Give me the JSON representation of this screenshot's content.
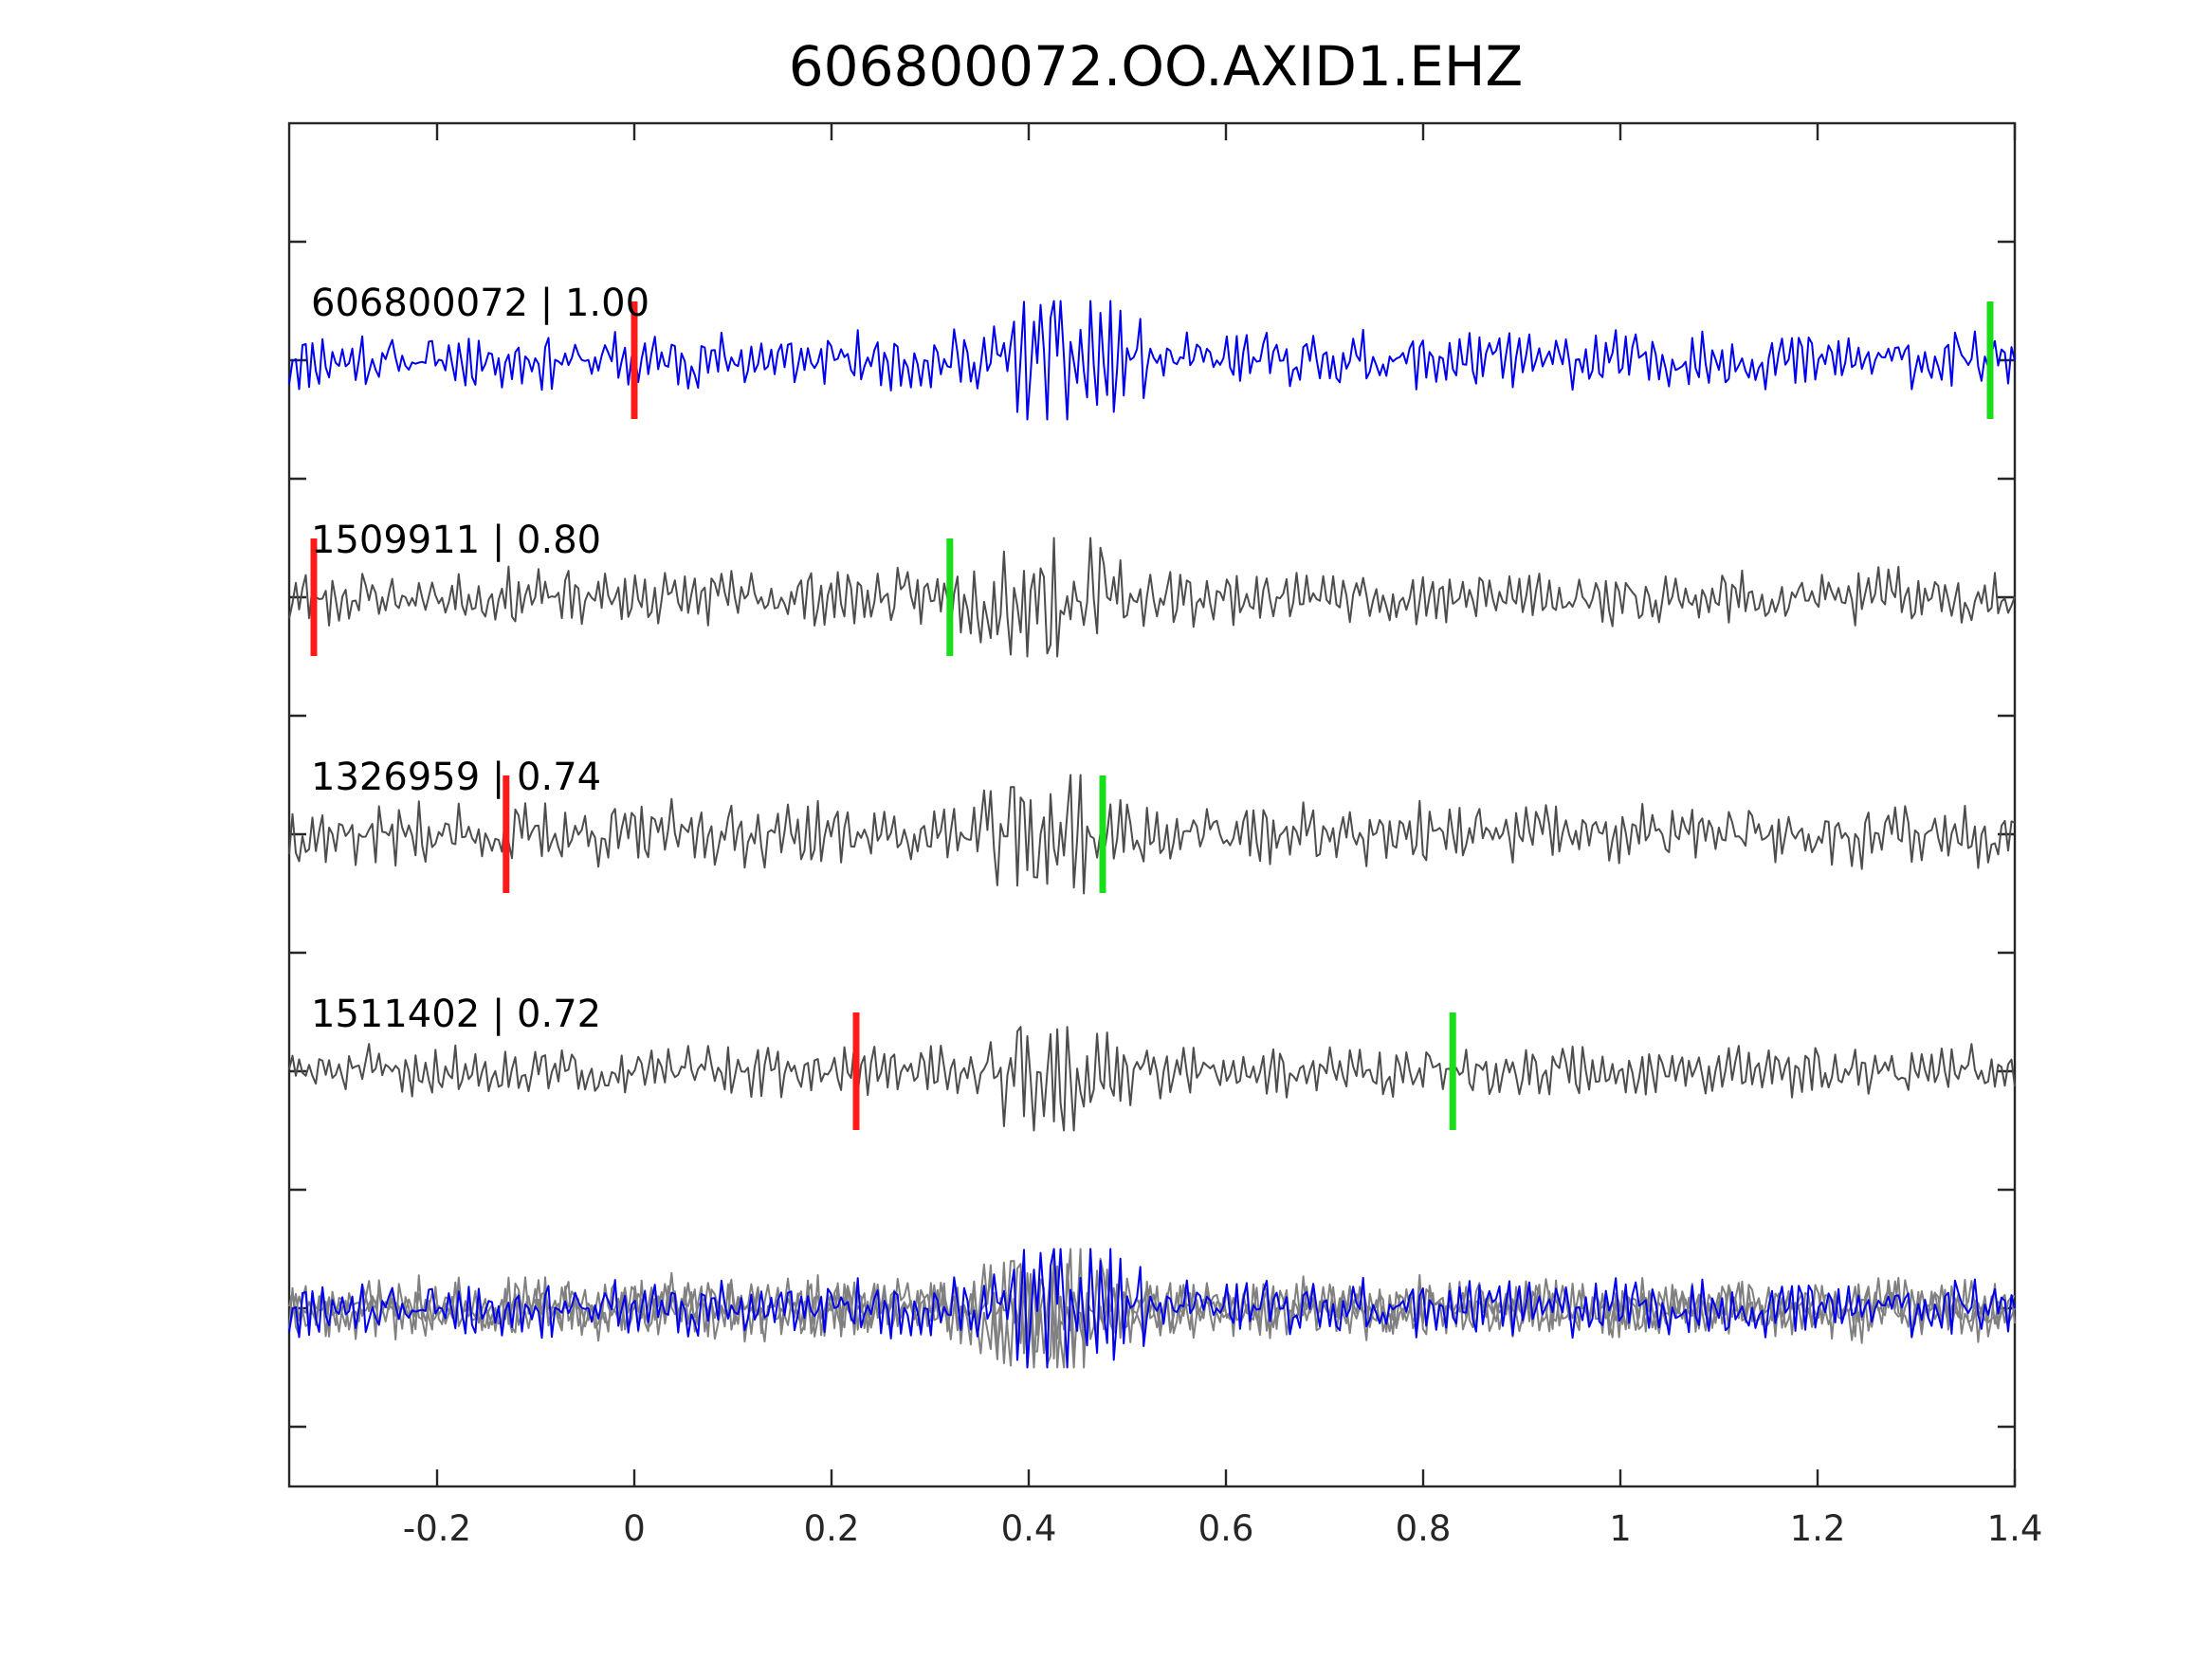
{
  "chart_data": {
    "type": "line",
    "title": "606800072.OO.AXID1.EHZ",
    "xlabel": "",
    "ylabel": "",
    "xlim": [
      -0.35,
      1.4
    ],
    "x_ticks": [
      -0.2,
      0,
      0.2,
      0.4,
      0.6,
      0.8,
      1,
      1.2,
      1.4
    ],
    "x_tick_labels": [
      "-0.2",
      "0",
      "0.2",
      "0.4",
      "0.6",
      "0.8",
      "1",
      "1.2",
      "1.4"
    ],
    "grid": false,
    "legend": "none",
    "colors": {
      "reference": "#0000ee",
      "neighbor": "#4d4d4d",
      "stack_neighbor": "#808080",
      "p_pick": "#ff1a1a",
      "s_pick": "#1ade1a"
    },
    "series": [
      {
        "label": "606800072 | 1.00",
        "role": "reference",
        "p_pick": 0.0,
        "s_pick": 1.375,
        "burst_center": 0.44,
        "burst_amp": 1.0,
        "noise_amp": 0.45,
        "seed": 11
      },
      {
        "label": "1509911 | 0.80",
        "role": "neighbor",
        "p_pick": -0.325,
        "s_pick": 0.32,
        "burst_center": 0.42,
        "burst_amp": 1.0,
        "noise_amp": 0.45,
        "seed": 23
      },
      {
        "label": "1326959 | 0.74",
        "role": "neighbor",
        "p_pick": -0.13,
        "s_pick": 0.475,
        "burst_center": 0.42,
        "burst_amp": 0.95,
        "noise_amp": 0.5,
        "seed": 37
      },
      {
        "label": "1511402 | 0.72",
        "role": "neighbor",
        "p_pick": 0.225,
        "s_pick": 0.83,
        "burst_center": 0.42,
        "burst_amp": 0.75,
        "noise_amp": 0.4,
        "seed": 51
      }
    ],
    "stack": {
      "description": "overlay of all traces",
      "reference_on_top": true
    }
  }
}
